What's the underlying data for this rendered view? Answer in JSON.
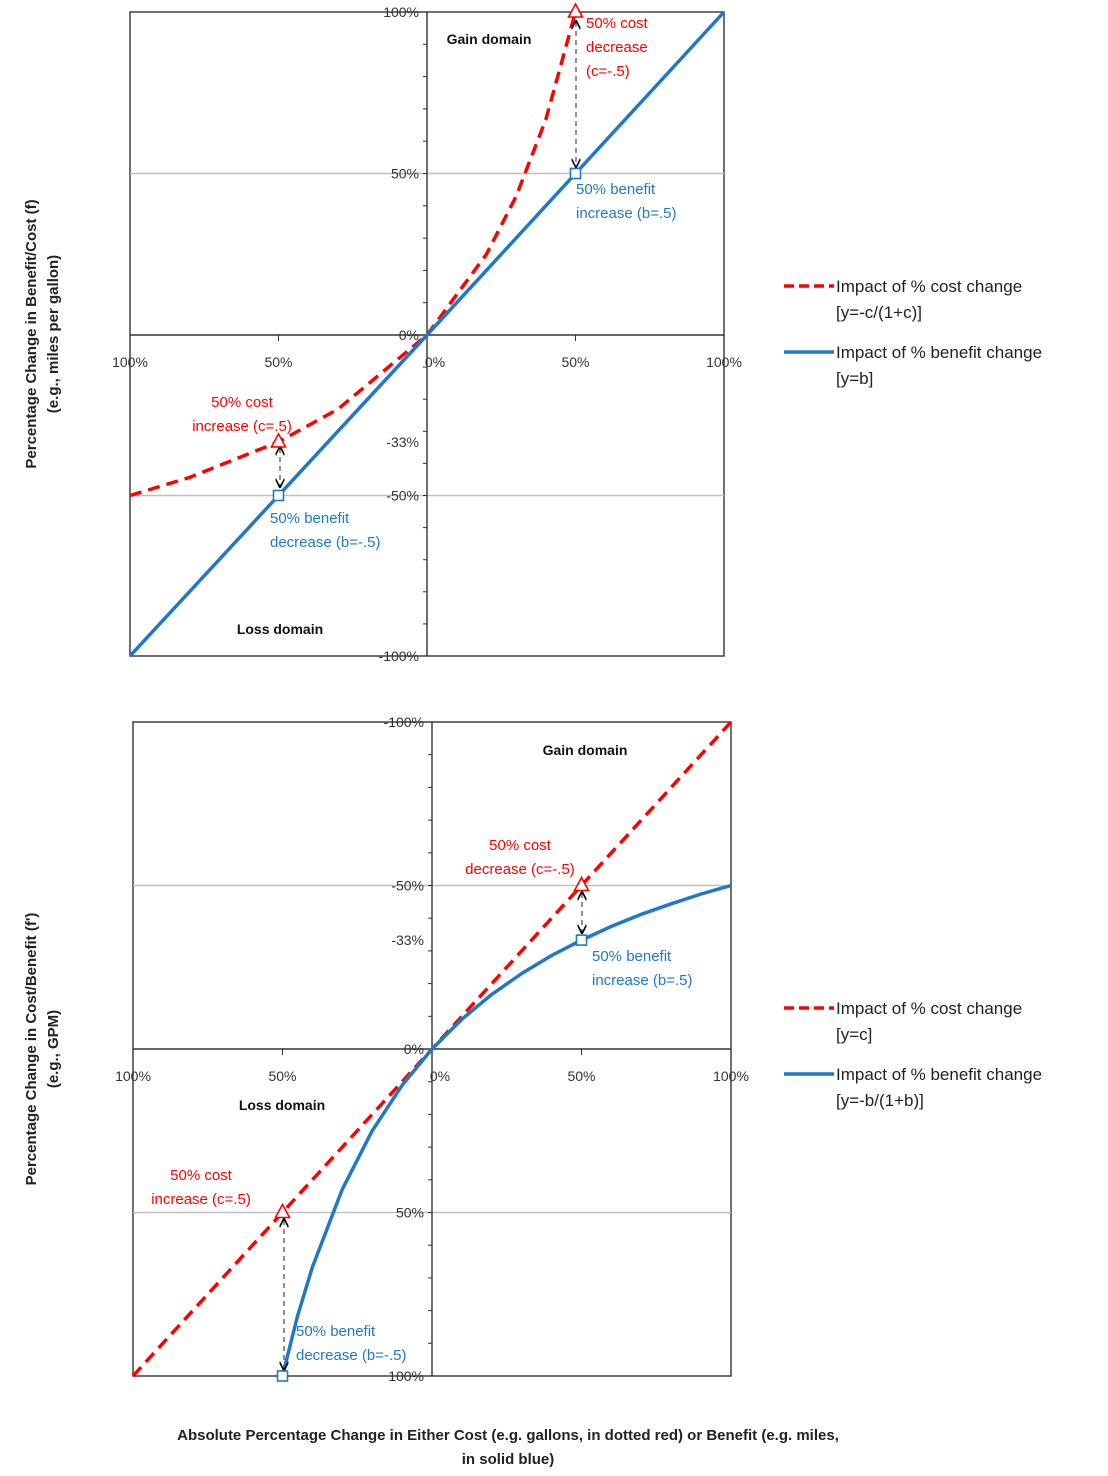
{
  "colors": {
    "cost": "#ff0000",
    "benefit": "#1f78c8",
    "grid": "#bfbfbf",
    "axis": "#333333"
  },
  "xlabel": [
    "Absolute Percentage Change in Either Cost (e.g. gallons, in dotted red) or Benefit (e.g. miles,",
    "in solid blue)"
  ],
  "chart_data": [
    {
      "type": "line",
      "ylabel": [
        "Percentage Change in Benefit/Cost (f)",
        "(e.g., miles per gallon)"
      ],
      "xticks": [
        "100%",
        "50%",
        "0%",
        "50%",
        "100%"
      ],
      "yticks": [
        {
          "value": 1.0,
          "label": "100%"
        },
        {
          "value": 0.5,
          "label": "50%"
        },
        {
          "value": 0.0,
          "label": "0%"
        },
        {
          "value": -0.333,
          "label": "-33%"
        },
        {
          "value": -0.5,
          "label": "-50%"
        },
        {
          "value": -1.0,
          "label": "-100%"
        }
      ],
      "xlim": [
        -1,
        1
      ],
      "ylim": [
        -1,
        1
      ],
      "domain_labels": [
        "Gain domain",
        "Loss domain"
      ],
      "series": [
        {
          "name": "Impact of % cost change",
          "formula": "[y=-c/(1+c)]",
          "style": "dashed",
          "points": [
            [
              -1,
              -0.5
            ],
            [
              -0.8,
              -0.444
            ],
            [
              -0.5,
              -0.333
            ],
            [
              -0.3,
              -0.231
            ],
            [
              0,
              0
            ],
            [
              0.2,
              0.25
            ],
            [
              0.3,
              0.429
            ],
            [
              0.4,
              0.667
            ],
            [
              0.5,
              1.0
            ]
          ]
        },
        {
          "name": "Impact of % benefit change",
          "formula": "[y=b]",
          "style": "solid",
          "points": [
            [
              -1,
              -1
            ],
            [
              0,
              0
            ],
            [
              1,
              1
            ]
          ]
        }
      ],
      "annotations": [
        {
          "lines": [
            "50% cost",
            "decrease",
            "(c=-.5)"
          ],
          "series": "cost",
          "x": 0.5,
          "y": 1.0
        },
        {
          "lines": [
            "50% benefit",
            "increase (b=.5)"
          ],
          "series": "benefit",
          "x": 0.5,
          "y": 0.5
        },
        {
          "lines": [
            "50% cost",
            "increase (c=.5)"
          ],
          "series": "cost",
          "x": -0.5,
          "y": -0.333
        },
        {
          "lines": [
            "50% benefit",
            "decrease (b=-.5)"
          ],
          "series": "benefit",
          "x": -0.5,
          "y": -0.5
        }
      ],
      "legend": "right"
    },
    {
      "type": "line",
      "ylabel": [
        "Percentage Change in Cost/Benefit (f')",
        "(e.g., GPM)"
      ],
      "xticks": [
        "100%",
        "50%",
        "0%",
        "50%",
        "100%"
      ],
      "yticks": [
        {
          "value": 1.0,
          "label": "-100%"
        },
        {
          "value": 0.5,
          "label": "-50%"
        },
        {
          "value": 0.333,
          "label": "-33%"
        },
        {
          "value": 0.0,
          "label": "0%"
        },
        {
          "value": -0.5,
          "label": "50%"
        },
        {
          "value": -1.0,
          "label": "100%"
        }
      ],
      "xlim": [
        -1,
        1
      ],
      "ylim": [
        -1,
        1
      ],
      "domain_labels": [
        "Gain domain",
        "Loss domain"
      ],
      "series": [
        {
          "name": "Impact of % cost change",
          "formula": "[y=c]",
          "style": "dashed",
          "points": [
            [
              -1,
              -1
            ],
            [
              0,
              0
            ],
            [
              1,
              1
            ]
          ]
        },
        {
          "name": "Impact of % benefit change",
          "formula": "[y=-b/(1+b)]",
          "style": "solid",
          "points": [
            [
              -0.5,
              -1.0
            ],
            [
              -0.45,
              -0.818
            ],
            [
              -0.4,
              -0.667
            ],
            [
              -0.3,
              -0.429
            ],
            [
              -0.2,
              -0.25
            ],
            [
              -0.1,
              -0.111
            ],
            [
              0,
              0
            ],
            [
              0.1,
              0.091
            ],
            [
              0.2,
              0.167
            ],
            [
              0.3,
              0.231
            ],
            [
              0.4,
              0.286
            ],
            [
              0.5,
              0.333
            ],
            [
              0.6,
              0.375
            ],
            [
              0.7,
              0.412
            ],
            [
              0.8,
              0.444
            ],
            [
              0.9,
              0.474
            ],
            [
              1.0,
              0.5
            ]
          ]
        }
      ],
      "annotations": [
        {
          "lines": [
            "50% cost",
            "decrease (c=-.5)"
          ],
          "series": "cost",
          "x": 0.5,
          "y": 0.5
        },
        {
          "lines": [
            "50% benefit",
            "increase (b=.5)"
          ],
          "series": "benefit",
          "x": 0.5,
          "y": 0.333
        },
        {
          "lines": [
            "50% cost",
            "increase (c=.5)"
          ],
          "series": "cost",
          "x": -0.5,
          "y": -0.5
        },
        {
          "lines": [
            "50% benefit",
            "decrease (b=-.5)"
          ],
          "series": "benefit",
          "x": -0.5,
          "y": -1.0
        }
      ],
      "legend": "right"
    }
  ]
}
